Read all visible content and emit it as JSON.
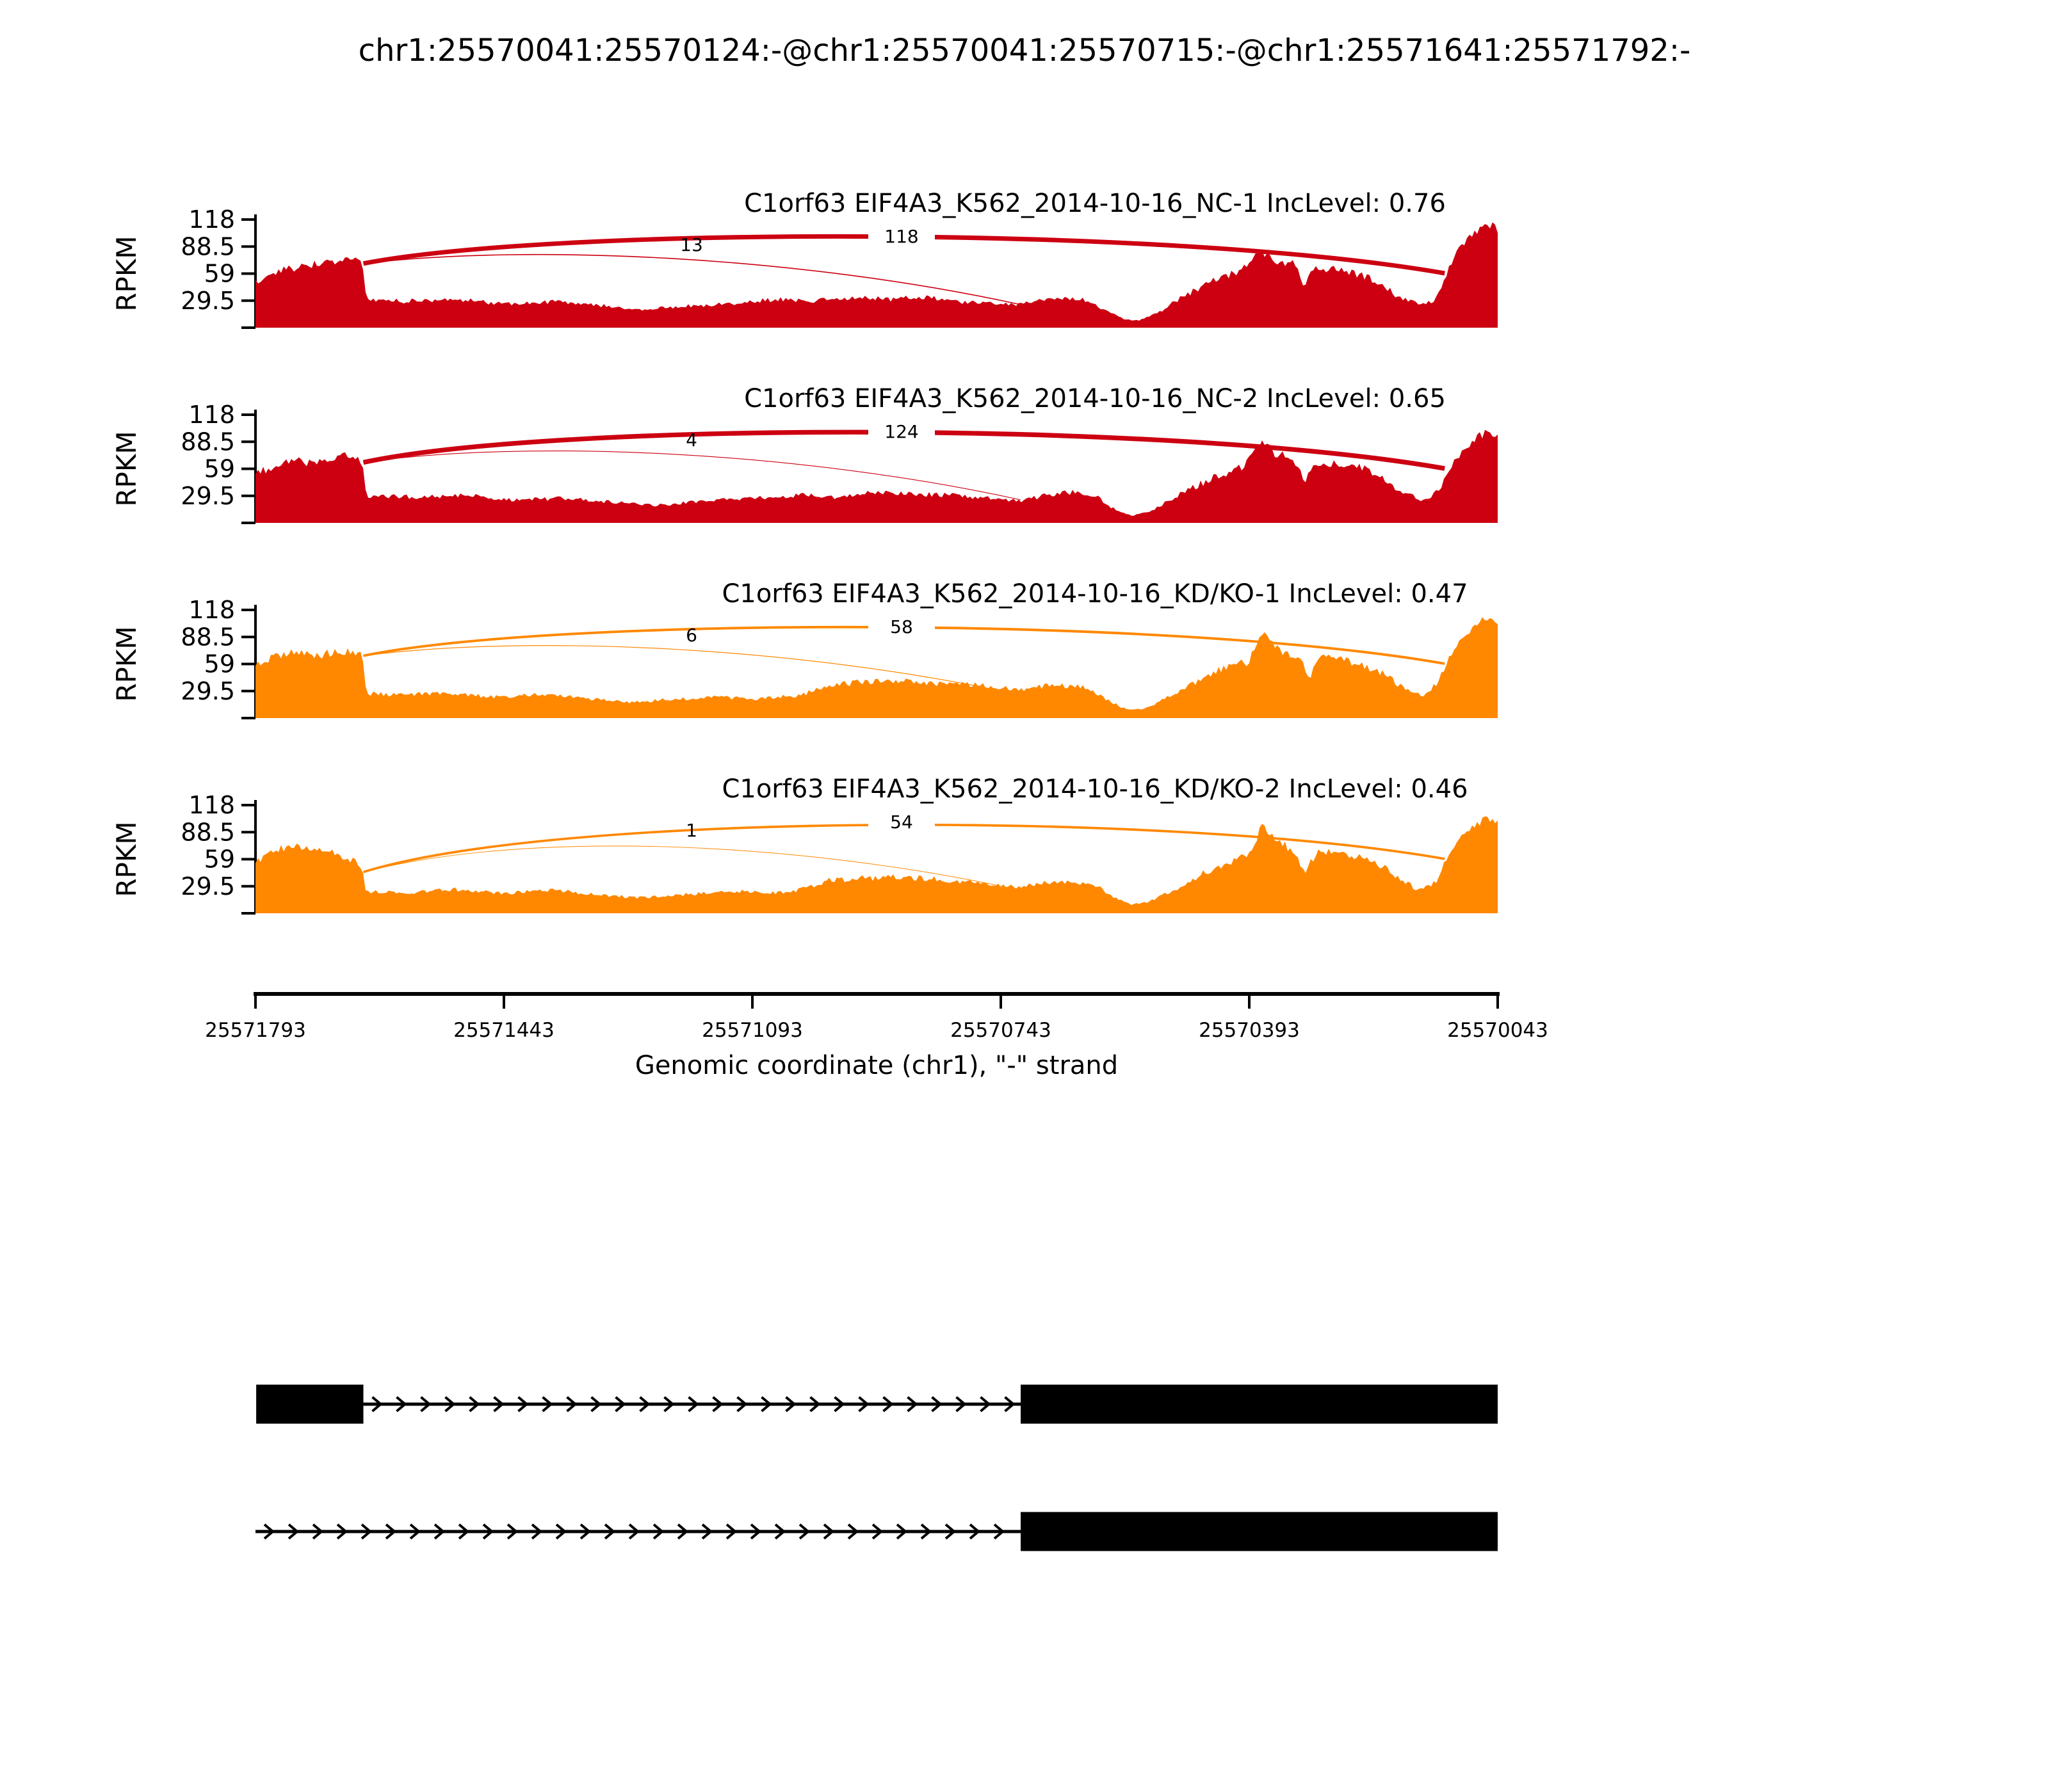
{
  "chart_data": {
    "type": "area",
    "subtype": "sashimi-coverage-plot",
    "title": "chr1:25570041:25570124:-@chr1:25570041:25570715:-@chr1:25571641:25571792:-",
    "ylabel": "RPKM",
    "y_ticks": [
      118,
      88.5,
      59,
      29.5
    ],
    "y_max": 118,
    "xlabel": "Genomic coordinate (chr1), \"-\" strand",
    "x_ticks": [
      25571793,
      25571443,
      25571093,
      25570743,
      25570393,
      25570043
    ],
    "x_domain": [
      25571793,
      25570043
    ],
    "strand": "-",
    "grid": false,
    "legend_position": "none",
    "colors": {
      "NC": "#CC0011",
      "KD": "#FF8800",
      "gene_model": "#000000",
      "junction_label": "#000000"
    },
    "junction_from": 25571641,
    "junction_to_thick": 25570124,
    "junction_to_thin": 25570715,
    "tracks": [
      {
        "title": "C1orf63 EIF4A3_K562_2014-10-16_NC-1 IncLevel: 0.76",
        "group": "NC",
        "inc_level": 0.76,
        "junction_reads_thick": 118,
        "junction_reads_thin": 13,
        "arc_start_rpkm": 70,
        "seed": 7,
        "coverage_profile": [
          [
            0,
            50
          ],
          [
            0.018,
            62
          ],
          [
            0.04,
            68
          ],
          [
            0.06,
            71
          ],
          [
            0.075,
            74
          ],
          [
            0.086,
            71
          ],
          [
            0.089,
            31
          ],
          [
            0.12,
            29
          ],
          [
            0.16,
            31
          ],
          [
            0.2,
            26
          ],
          [
            0.24,
            28
          ],
          [
            0.28,
            24
          ],
          [
            0.31,
            20
          ],
          [
            0.34,
            23
          ],
          [
            0.38,
            26
          ],
          [
            0.42,
            31
          ],
          [
            0.45,
            29
          ],
          [
            0.48,
            33
          ],
          [
            0.51,
            31
          ],
          [
            0.54,
            34
          ],
          [
            0.57,
            28
          ],
          [
            0.6,
            26
          ],
          [
            0.615,
            25
          ],
          [
            0.63,
            30
          ],
          [
            0.655,
            33
          ],
          [
            0.671,
            30
          ],
          [
            0.685,
            18
          ],
          [
            0.7,
            9
          ],
          [
            0.712,
            8
          ],
          [
            0.725,
            15
          ],
          [
            0.74,
            28
          ],
          [
            0.755,
            40
          ],
          [
            0.77,
            50
          ],
          [
            0.79,
            60
          ],
          [
            0.8,
            68
          ],
          [
            0.807,
            88
          ],
          [
            0.814,
            79
          ],
          [
            0.822,
            72
          ],
          [
            0.836,
            70
          ],
          [
            0.844,
            46
          ],
          [
            0.852,
            64
          ],
          [
            0.87,
            63
          ],
          [
            0.89,
            58
          ],
          [
            0.905,
            48
          ],
          [
            0.92,
            34
          ],
          [
            0.936,
            26
          ],
          [
            0.95,
            30
          ],
          [
            0.957,
            52
          ],
          [
            0.966,
            82
          ],
          [
            0.976,
            96
          ],
          [
            0.986,
            108
          ],
          [
            0.995,
            112
          ],
          [
            1,
            107
          ]
        ]
      },
      {
        "title": "C1orf63 EIF4A3_K562_2014-10-16_NC-2 IncLevel: 0.65",
        "group": "NC",
        "inc_level": 0.65,
        "junction_reads_thick": 124,
        "junction_reads_thin": 4,
        "arc_start_rpkm": 66,
        "seed": 13,
        "coverage_profile": [
          [
            0,
            55
          ],
          [
            0.015,
            61
          ],
          [
            0.03,
            70
          ],
          [
            0.045,
            64
          ],
          [
            0.06,
            67
          ],
          [
            0.072,
            73
          ],
          [
            0.086,
            67
          ],
          [
            0.089,
            30
          ],
          [
            0.13,
            28
          ],
          [
            0.17,
            30
          ],
          [
            0.21,
            25
          ],
          [
            0.25,
            27
          ],
          [
            0.29,
            22
          ],
          [
            0.32,
            19
          ],
          [
            0.36,
            24
          ],
          [
            0.4,
            27
          ],
          [
            0.44,
            30
          ],
          [
            0.47,
            28
          ],
          [
            0.5,
            34
          ],
          [
            0.53,
            32
          ],
          [
            0.56,
            30
          ],
          [
            0.59,
            27
          ],
          [
            0.615,
            24
          ],
          [
            0.64,
            31
          ],
          [
            0.66,
            34
          ],
          [
            0.675,
            31
          ],
          [
            0.69,
            16
          ],
          [
            0.705,
            8
          ],
          [
            0.72,
            12
          ],
          [
            0.74,
            28
          ],
          [
            0.76,
            42
          ],
          [
            0.78,
            54
          ],
          [
            0.795,
            62
          ],
          [
            0.806,
            81
          ],
          [
            0.813,
            90
          ],
          [
            0.821,
            75
          ],
          [
            0.833,
            72
          ],
          [
            0.845,
            48
          ],
          [
            0.855,
            66
          ],
          [
            0.875,
            64
          ],
          [
            0.893,
            60
          ],
          [
            0.907,
            50
          ],
          [
            0.92,
            36
          ],
          [
            0.94,
            25
          ],
          [
            0.953,
            35
          ],
          [
            0.962,
            62
          ],
          [
            0.972,
            80
          ],
          [
            0.982,
            93
          ],
          [
            0.991,
            98
          ],
          [
            1,
            94
          ]
        ]
      },
      {
        "title": "C1orf63 EIF4A3_K562_2014-10-16_KD/KO-1 IncLevel: 0.47",
        "group": "KD",
        "inc_level": 0.47,
        "junction_reads_thick": 58,
        "junction_reads_thin": 6,
        "arc_start_rpkm": 68,
        "seed": 21,
        "coverage_profile": [
          [
            0,
            58
          ],
          [
            0.015,
            66
          ],
          [
            0.03,
            72
          ],
          [
            0.05,
            68
          ],
          [
            0.068,
            74
          ],
          [
            0.086,
            69
          ],
          [
            0.089,
            27
          ],
          [
            0.12,
            25
          ],
          [
            0.15,
            28
          ],
          [
            0.19,
            23
          ],
          [
            0.23,
            26
          ],
          [
            0.27,
            21
          ],
          [
            0.3,
            17
          ],
          [
            0.33,
            20
          ],
          [
            0.37,
            23
          ],
          [
            0.4,
            21
          ],
          [
            0.44,
            25
          ],
          [
            0.462,
            37
          ],
          [
            0.49,
            39
          ],
          [
            0.52,
            41
          ],
          [
            0.55,
            38
          ],
          [
            0.58,
            36
          ],
          [
            0.6,
            33
          ],
          [
            0.615,
            31
          ],
          [
            0.63,
            34
          ],
          [
            0.65,
            36
          ],
          [
            0.67,
            33
          ],
          [
            0.685,
            20
          ],
          [
            0.7,
            10
          ],
          [
            0.714,
            9
          ],
          [
            0.728,
            18
          ],
          [
            0.744,
            30
          ],
          [
            0.76,
            42
          ],
          [
            0.775,
            52
          ],
          [
            0.79,
            58
          ],
          [
            0.8,
            62
          ],
          [
            0.81,
            92
          ],
          [
            0.818,
            83
          ],
          [
            0.827,
            72
          ],
          [
            0.84,
            68
          ],
          [
            0.849,
            45
          ],
          [
            0.858,
            66
          ],
          [
            0.88,
            62
          ],
          [
            0.896,
            56
          ],
          [
            0.91,
            46
          ],
          [
            0.925,
            32
          ],
          [
            0.94,
            24
          ],
          [
            0.952,
            40
          ],
          [
            0.963,
            70
          ],
          [
            0.973,
            89
          ],
          [
            0.983,
            103
          ],
          [
            0.993,
            110
          ],
          [
            1,
            104
          ]
        ]
      },
      {
        "title": "C1orf63 EIF4A3_K562_2014-10-16_KD/KO-2 IncLevel: 0.46",
        "group": "KD",
        "inc_level": 0.46,
        "junction_reads_thick": 54,
        "junction_reads_thin": 1,
        "arc_start_rpkm": 45,
        "seed": 29,
        "coverage_profile": [
          [
            0,
            55
          ],
          [
            0.015,
            68
          ],
          [
            0.03,
            74
          ],
          [
            0.05,
            70
          ],
          [
            0.065,
            66
          ],
          [
            0.078,
            58
          ],
          [
            0.086,
            48
          ],
          [
            0.089,
            24
          ],
          [
            0.12,
            22
          ],
          [
            0.16,
            26
          ],
          [
            0.2,
            22
          ],
          [
            0.24,
            25
          ],
          [
            0.28,
            20
          ],
          [
            0.31,
            17
          ],
          [
            0.35,
            21
          ],
          [
            0.39,
            24
          ],
          [
            0.43,
            22
          ],
          [
            0.462,
            36
          ],
          [
            0.49,
            38
          ],
          [
            0.52,
            40
          ],
          [
            0.55,
            37
          ],
          [
            0.58,
            34
          ],
          [
            0.6,
            31
          ],
          [
            0.615,
            28
          ],
          [
            0.635,
            33
          ],
          [
            0.655,
            35
          ],
          [
            0.675,
            32
          ],
          [
            0.69,
            18
          ],
          [
            0.705,
            9
          ],
          [
            0.72,
            13
          ],
          [
            0.74,
            26
          ],
          [
            0.755,
            38
          ],
          [
            0.77,
            48
          ],
          [
            0.785,
            56
          ],
          [
            0.8,
            64
          ],
          [
            0.81,
            95
          ],
          [
            0.818,
            84
          ],
          [
            0.83,
            73
          ],
          [
            0.845,
            47
          ],
          [
            0.856,
            68
          ],
          [
            0.875,
            65
          ],
          [
            0.893,
            60
          ],
          [
            0.907,
            52
          ],
          [
            0.92,
            38
          ],
          [
            0.936,
            26
          ],
          [
            0.95,
            34
          ],
          [
            0.96,
            62
          ],
          [
            0.97,
            82
          ],
          [
            0.981,
            96
          ],
          [
            0.991,
            104
          ],
          [
            1,
            98
          ]
        ]
      }
    ],
    "gene_models": [
      {
        "exons": [
          [
            25571792,
            25571641
          ],
          [
            25570715,
            25570043
          ]
        ],
        "intron_line": [
          25571641,
          25570715
        ]
      },
      {
        "exons": [
          [
            25570715,
            25570043
          ]
        ],
        "intron_line": [
          25571793,
          25570715
        ]
      }
    ]
  }
}
